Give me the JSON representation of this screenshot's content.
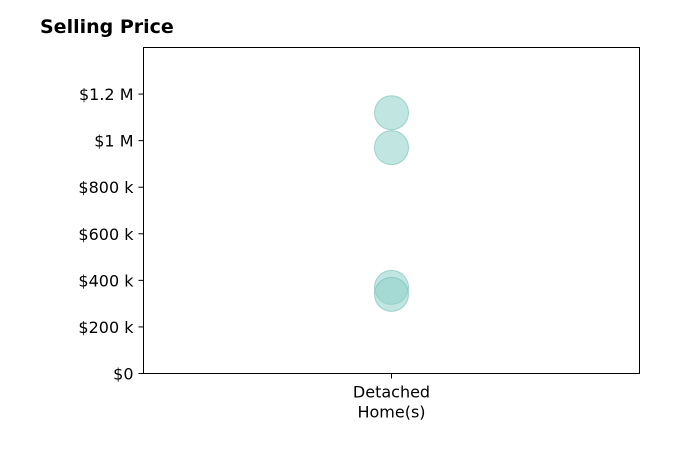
{
  "chart_data": {
    "type": "scatter",
    "title": "Selling Price",
    "xlabel": "",
    "ylabel": "",
    "categories": [
      [
        "Detached",
        "Home(s)"
      ]
    ],
    "points": [
      {
        "category": 0,
        "y": 1120000
      },
      {
        "category": 0,
        "y": 970000
      },
      {
        "category": 0,
        "y": 370000
      },
      {
        "category": 0,
        "y": 340000
      }
    ],
    "ylim": [
      0,
      1400000
    ],
    "yticks": [
      0,
      200000,
      400000,
      600000,
      800000,
      1000000,
      1200000
    ],
    "ytick_labels": [
      "$0",
      "$200 k",
      "$400 k",
      "$600 k",
      "$800 k",
      "$1 M",
      "$1.2 M"
    ],
    "grid": false,
    "legend": "none",
    "marker_color": "#8ecfc9",
    "marker_edge_color": "#6fbcb5"
  }
}
